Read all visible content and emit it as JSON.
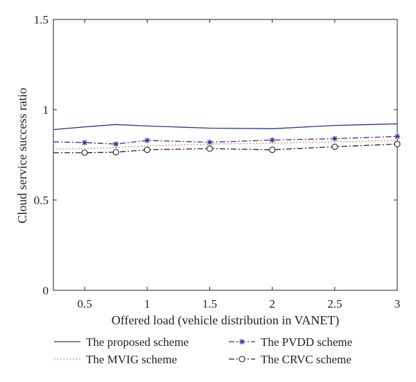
{
  "chart_data": {
    "type": "line",
    "xlabel": "Offered load (vehicle distribution in VANET)",
    "ylabel": "Cloud service success ratio",
    "xlim": [
      0.25,
      3
    ],
    "ylim": [
      0,
      1.5
    ],
    "xticks": [
      0.5,
      1,
      1.5,
      2,
      2.5,
      3
    ],
    "xtick_labels": [
      "0.5",
      "1",
      "1.5",
      "2",
      "2.5",
      "3"
    ],
    "yticks": [
      0,
      0.5,
      1,
      1.5
    ],
    "ytick_labels": [
      "0",
      "0.5",
      "1",
      "1.5"
    ],
    "grid": false,
    "legend_position": "bottom",
    "series": [
      {
        "name": "The proposed scheme",
        "color": "#2e3192",
        "dash": "solid",
        "marker": "none",
        "x": [
          0.25,
          0.5,
          0.75,
          1,
          1.5,
          2,
          2.5,
          3
        ],
        "y": [
          0.89,
          0.905,
          0.918,
          0.91,
          0.898,
          0.895,
          0.913,
          0.922
        ]
      },
      {
        "name": "The PVDD scheme",
        "color": "#2e3192",
        "dash": "dashdot",
        "marker": "star",
        "x": [
          0.25,
          0.5,
          0.75,
          1,
          1.5,
          2,
          2.5,
          3
        ],
        "y": [
          0.822,
          0.818,
          0.81,
          0.83,
          0.82,
          0.832,
          0.84,
          0.852
        ]
      },
      {
        "name": "The MVIG scheme",
        "color": "#f15a24",
        "dash": "dotted",
        "marker": "none",
        "x": [
          0.25,
          0.5,
          0.75,
          1,
          1.5,
          2,
          2.5,
          3
        ],
        "y": [
          0.782,
          0.785,
          0.79,
          0.8,
          0.81,
          0.815,
          0.822,
          0.83
        ]
      },
      {
        "name": "The CRVC scheme",
        "color": "#231f20",
        "dash": "dashdot",
        "marker": "circle",
        "x": [
          0.25,
          0.5,
          0.75,
          1,
          1.5,
          2,
          2.5,
          3
        ],
        "y": [
          0.762,
          0.762,
          0.765,
          0.778,
          0.785,
          0.778,
          0.795,
          0.81
        ]
      }
    ]
  }
}
